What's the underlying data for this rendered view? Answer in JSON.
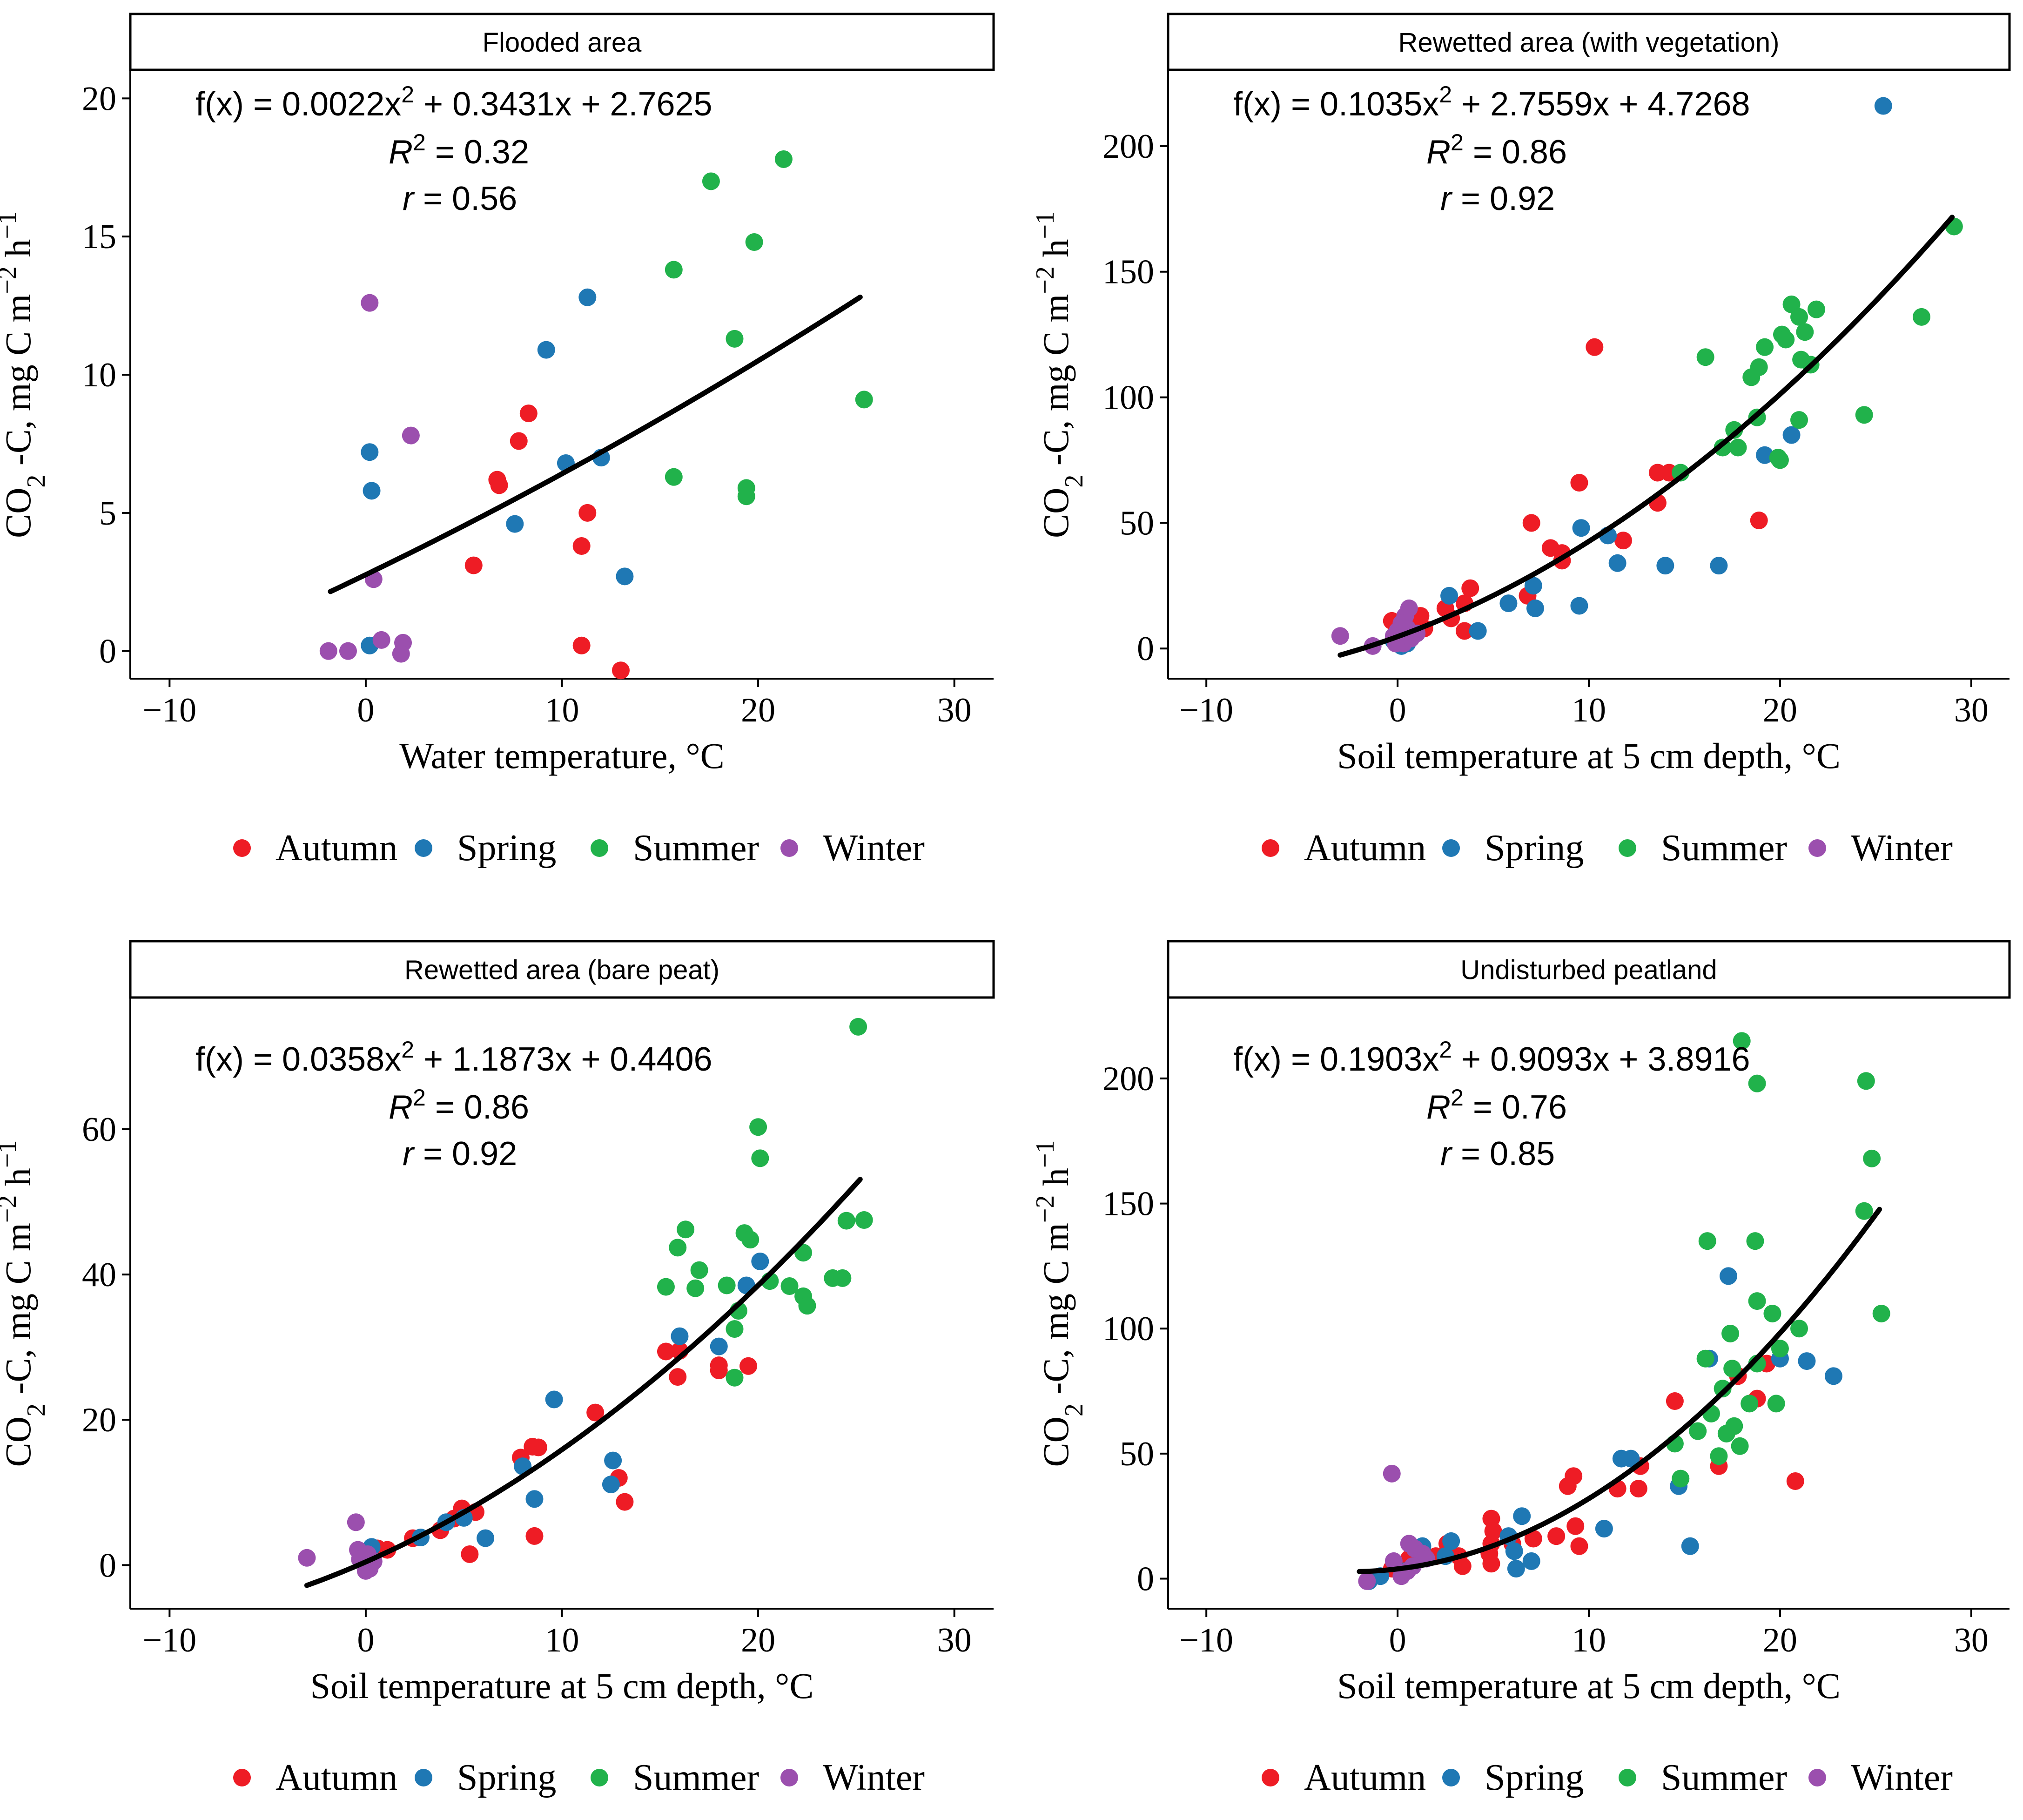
{
  "colors": {
    "Autumn": "#EE1C25",
    "Spring": "#1F78B4",
    "Summer": "#21B24B",
    "Winter": "#9B4FAE"
  },
  "legend": [
    "Autumn",
    "Spring",
    "Summer",
    "Winter"
  ],
  "y_label": {
    "prefix": "CO",
    "sub": "2",
    "mid": " -C, mg C m",
    "sup1": "−2",
    "mid2": " h",
    "sup2": "−1"
  },
  "chart_data": [
    {
      "type": "scatter",
      "title": "Flooded area",
      "xlabel": "Water temperature, °C",
      "xlim": [
        -12,
        32
      ],
      "ylim": [
        -1,
        21
      ],
      "xticks": [
        -10,
        0,
        10,
        20,
        30
      ],
      "yticks": [
        0,
        5,
        10,
        15,
        20
      ],
      "fit": {
        "a": 0.0022,
        "b": 0.3431,
        "c": 2.7625,
        "x_range": [
          -1.8,
          25.2
        ]
      },
      "equation": {
        "f_prefix": "f(x) = 0.0022x",
        "f_exp": "2",
        "f_suffix": " + 0.3431x + 2.7625",
        "r2_label": "R",
        "r2_exp": "2",
        "r2_value": " = 0.32",
        "r_label": "r",
        "r_value": " = 0.56"
      },
      "points": {
        "Autumn": [
          [
            8.3,
            8.6
          ],
          [
            7.8,
            7.6
          ],
          [
            6.7,
            6.2
          ],
          [
            6.8,
            6.0
          ],
          [
            11.3,
            5.0
          ],
          [
            5.5,
            3.1
          ],
          [
            11.0,
            3.8
          ],
          [
            11.0,
            0.2
          ],
          [
            13.0,
            -0.7
          ]
        ],
        "Spring": [
          [
            11.3,
            12.8
          ],
          [
            9.2,
            10.9
          ],
          [
            0.2,
            7.2
          ],
          [
            0.3,
            5.8
          ],
          [
            10.2,
            6.8
          ],
          [
            12.0,
            7.0
          ],
          [
            7.6,
            4.6
          ],
          [
            13.2,
            2.7
          ],
          [
            0.2,
            0.2
          ]
        ],
        "Summer": [
          [
            21.3,
            17.8
          ],
          [
            17.6,
            17.0
          ],
          [
            19.8,
            14.8
          ],
          [
            15.7,
            13.8
          ],
          [
            18.8,
            11.3
          ],
          [
            25.4,
            9.1
          ],
          [
            15.7,
            6.3
          ],
          [
            19.4,
            5.9
          ],
          [
            19.4,
            5.6
          ]
        ],
        "Winter": [
          [
            0.2,
            12.6
          ],
          [
            2.3,
            7.8
          ],
          [
            0.4,
            2.6
          ],
          [
            0.8,
            0.4
          ],
          [
            1.9,
            0.3
          ],
          [
            -0.9,
            0.0
          ],
          [
            -1.9,
            0.0
          ],
          [
            1.8,
            -0.1
          ]
        ]
      }
    },
    {
      "type": "scatter",
      "title": "Rewetted area (with vegetation)",
      "xlabel": "Soil temperature at 5 cm depth, °C",
      "xlim": [
        -12,
        32
      ],
      "ylim": [
        -12,
        230
      ],
      "xticks": [
        -10,
        0,
        10,
        20,
        30
      ],
      "yticks": [
        0,
        50,
        100,
        150,
        200
      ],
      "fit": {
        "a": 0.1035,
        "b": 2.7559,
        "c": 4.7268,
        "x_range": [
          -3,
          29
        ]
      },
      "equation": {
        "f_prefix": "f(x) = 0.1035x",
        "f_exp": "2",
        "f_suffix": " + 2.7559x + 4.7268",
        "r2_label": "R",
        "r2_exp": "2",
        "r2_value": " = 0.86",
        "r_label": "r",
        "r_value": " = 0.92"
      },
      "points": {
        "Autumn": [
          [
            10.3,
            120
          ],
          [
            9.5,
            66
          ],
          [
            13.6,
            70
          ],
          [
            14.2,
            70
          ],
          [
            13.6,
            58
          ],
          [
            7.0,
            50
          ],
          [
            8.0,
            40
          ],
          [
            8.6,
            38
          ],
          [
            8.6,
            35
          ],
          [
            11.8,
            43
          ],
          [
            18.9,
            51
          ],
          [
            3.8,
            24
          ],
          [
            6.8,
            21
          ],
          [
            2.5,
            16
          ],
          [
            3.5,
            18
          ],
          [
            0.7,
            11
          ],
          [
            1.4,
            8
          ],
          [
            -0.3,
            11
          ],
          [
            3.5,
            7
          ],
          [
            1.2,
            13
          ],
          [
            2.8,
            12
          ]
        ],
        "Spring": [
          [
            25.4,
            216
          ],
          [
            20.6,
            85
          ],
          [
            19.2,
            77
          ],
          [
            11.0,
            45
          ],
          [
            9.6,
            48
          ],
          [
            11.5,
            34
          ],
          [
            14.0,
            33
          ],
          [
            16.8,
            33
          ],
          [
            9.5,
            17
          ],
          [
            7.1,
            25
          ],
          [
            5.8,
            18
          ],
          [
            7.2,
            16
          ],
          [
            4.2,
            7
          ],
          [
            2.7,
            21
          ],
          [
            0.8,
            6
          ],
          [
            0.5,
            2
          ],
          [
            -0.2,
            3
          ],
          [
            0.2,
            1
          ]
        ],
        "Summer": [
          [
            29.1,
            168
          ],
          [
            27.4,
            132
          ],
          [
            20.6,
            137
          ],
          [
            21.9,
            135
          ],
          [
            21.0,
            132
          ],
          [
            20.1,
            125
          ],
          [
            20.3,
            123
          ],
          [
            21.3,
            126
          ],
          [
            21.1,
            115
          ],
          [
            21.6,
            113
          ],
          [
            19.2,
            120
          ],
          [
            18.9,
            112
          ],
          [
            18.5,
            108
          ],
          [
            16.1,
            116
          ],
          [
            18.8,
            92
          ],
          [
            24.4,
            93
          ],
          [
            21.0,
            91
          ],
          [
            17.6,
            87
          ],
          [
            17.0,
            80
          ],
          [
            17.8,
            80
          ],
          [
            19.9,
            76
          ],
          [
            20.0,
            75
          ],
          [
            14.8,
            70
          ]
        ],
        "Winter": [
          [
            -3.0,
            5
          ],
          [
            -1.3,
            1
          ],
          [
            0.6,
            16
          ],
          [
            0.4,
            13
          ],
          [
            0.2,
            10
          ],
          [
            0.0,
            7
          ],
          [
            -0.2,
            5
          ],
          [
            0.7,
            4
          ],
          [
            0.3,
            2
          ],
          [
            -0.1,
            2
          ],
          [
            0.5,
            8
          ],
          [
            1.0,
            6
          ]
        ]
      }
    },
    {
      "type": "scatter",
      "title": "Rewetted area (bare peat)",
      "xlabel": "Soil temperature at 5 cm depth, °C",
      "xlim": [
        -12,
        32
      ],
      "ylim": [
        -6,
        78
      ],
      "xticks": [
        -10,
        0,
        10,
        20,
        30
      ],
      "yticks": [
        0,
        20,
        40,
        60
      ],
      "fit": {
        "a": 0.0358,
        "b": 1.1873,
        "c": 0.4406,
        "x_range": [
          -3,
          25.2
        ]
      },
      "equation": {
        "f_prefix": "f(x) = 0.0358x",
        "f_exp": "2",
        "f_suffix": " + 1.1873x + 0.4406",
        "r2_label": "R",
        "r2_exp": "2",
        "r2_value": " = 0.86",
        "r_label": "r",
        "r_value": " = 0.92"
      },
      "points": {
        "Autumn": [
          [
            11.7,
            21
          ],
          [
            8.5,
            16.3
          ],
          [
            8.8,
            16.2
          ],
          [
            7.9,
            14.8
          ],
          [
            12.9,
            12
          ],
          [
            13.2,
            8.7
          ],
          [
            15.3,
            29.4
          ],
          [
            16.0,
            29.5
          ],
          [
            18.0,
            27.5
          ],
          [
            19.5,
            27.4
          ],
          [
            18.0,
            26.8
          ],
          [
            15.9,
            25.9
          ],
          [
            5.6,
            7.3
          ],
          [
            4.9,
            7.8
          ],
          [
            4.5,
            6.4
          ],
          [
            3.8,
            4.8
          ],
          [
            2.4,
            3.7
          ],
          [
            1.1,
            2.1
          ],
          [
            8.6,
            4.0
          ],
          [
            5.3,
            1.5
          ],
          [
            0.6,
            2.3
          ]
        ],
        "Spring": [
          [
            20.1,
            41.8
          ],
          [
            19.4,
            38.5
          ],
          [
            18.0,
            30.1
          ],
          [
            16.0,
            31.5
          ],
          [
            9.6,
            22.8
          ],
          [
            12.6,
            14.4
          ],
          [
            12.5,
            11.1
          ],
          [
            8.6,
            9.1
          ],
          [
            8.0,
            13.6
          ],
          [
            6.1,
            3.7
          ],
          [
            5.0,
            6.5
          ],
          [
            4.1,
            5.9
          ],
          [
            2.8,
            3.8
          ],
          [
            0.3,
            2.5
          ],
          [
            0.1,
            1.0
          ]
        ],
        "Summer": [
          [
            25.1,
            74.1
          ],
          [
            20.0,
            60.3
          ],
          [
            20.1,
            56
          ],
          [
            16.3,
            46.2
          ],
          [
            15.9,
            43.7
          ],
          [
            19.3,
            45.7
          ],
          [
            19.6,
            44.8
          ],
          [
            24.5,
            47.4
          ],
          [
            25.4,
            47.5
          ],
          [
            22.3,
            43
          ],
          [
            17.0,
            40.6
          ],
          [
            15.3,
            38.3
          ],
          [
            16.8,
            38.1
          ],
          [
            18.4,
            38.5
          ],
          [
            21.6,
            38.4
          ],
          [
            20.6,
            39.1
          ],
          [
            23.8,
            39.5
          ],
          [
            24.3,
            39.5
          ],
          [
            22.3,
            37
          ],
          [
            22.5,
            35.7
          ],
          [
            18.8,
            32.5
          ],
          [
            18.8,
            25.8
          ],
          [
            19.0,
            35
          ]
        ],
        "Winter": [
          [
            -3.0,
            1.0
          ],
          [
            -0.5,
            5.9
          ],
          [
            -0.4,
            2.1
          ],
          [
            0.0,
            0.0
          ],
          [
            0.2,
            -0.5
          ],
          [
            -0.3,
            0.8
          ],
          [
            0.1,
            1.5
          ],
          [
            0.0,
            -0.8
          ],
          [
            0.4,
            0.5
          ]
        ]
      }
    },
    {
      "type": "scatter",
      "title": "Undisturbed peatland",
      "xlabel": "Soil temperature at 5 cm depth, °C",
      "xlim": [
        -12,
        32
      ],
      "ylim": [
        -12,
        232
      ],
      "xticks": [
        -10,
        0,
        10,
        20,
        30
      ],
      "yticks": [
        0,
        50,
        100,
        150,
        200
      ],
      "fit": {
        "a": 0.1903,
        "b": 0.9093,
        "c": 3.8916,
        "x_range": [
          -2,
          25.2
        ]
      },
      "equation": {
        "f_prefix": "f(x) = 0.1903x",
        "f_exp": "2",
        "f_suffix": " + 0.9093x + 3.8916",
        "r2_label": "R",
        "r2_exp": "2",
        "r2_value": " = 0.76",
        "r_label": "r",
        "r_value": " = 0.85"
      },
      "points": {
        "Autumn": [
          [
            19.3,
            86
          ],
          [
            18.8,
            72
          ],
          [
            14.5,
            71
          ],
          [
            17.8,
            81
          ],
          [
            16.8,
            45
          ],
          [
            20.8,
            39
          ],
          [
            9.2,
            41
          ],
          [
            8.9,
            37
          ],
          [
            11.5,
            36
          ],
          [
            12.7,
            45
          ],
          [
            12.6,
            36
          ],
          [
            9.3,
            21
          ],
          [
            9.5,
            13
          ],
          [
            8.3,
            17
          ],
          [
            7.1,
            16
          ],
          [
            6.0,
            14
          ],
          [
            4.9,
            24
          ],
          [
            5.0,
            19
          ],
          [
            4.9,
            14
          ],
          [
            4.8,
            10
          ],
          [
            4.9,
            6
          ],
          [
            3.4,
            5
          ],
          [
            3.2,
            9
          ],
          [
            2.0,
            9
          ],
          [
            2.6,
            14
          ],
          [
            1.3,
            11
          ],
          [
            0.6,
            8
          ],
          [
            -0.3,
            4
          ]
        ],
        "Spring": [
          [
            17.3,
            121
          ],
          [
            16.3,
            88
          ],
          [
            21.4,
            87
          ],
          [
            22.8,
            81
          ],
          [
            20.0,
            88
          ],
          [
            11.7,
            48
          ],
          [
            12.2,
            48
          ],
          [
            14.7,
            37
          ],
          [
            15.3,
            13
          ],
          [
            10.8,
            20
          ],
          [
            6.5,
            25
          ],
          [
            5.8,
            17
          ],
          [
            6.1,
            11
          ],
          [
            7.0,
            7
          ],
          [
            6.2,
            4
          ],
          [
            2.8,
            15
          ],
          [
            2.5,
            9
          ],
          [
            1.3,
            13
          ],
          [
            0.4,
            3
          ],
          [
            -0.9,
            1
          ],
          [
            -1.5,
            -1
          ]
        ],
        "Summer": [
          [
            18.0,
            215
          ],
          [
            18.8,
            198
          ],
          [
            24.5,
            199
          ],
          [
            24.8,
            168
          ],
          [
            24.4,
            147
          ],
          [
            16.2,
            135
          ],
          [
            18.7,
            135
          ],
          [
            18.8,
            111
          ],
          [
            19.6,
            106
          ],
          [
            25.3,
            106
          ],
          [
            21.0,
            100
          ],
          [
            17.4,
            98
          ],
          [
            20.0,
            92
          ],
          [
            16.1,
            88
          ],
          [
            17.5,
            84
          ],
          [
            18.8,
            86
          ],
          [
            17.0,
            76
          ],
          [
            18.4,
            70
          ],
          [
            19.8,
            70
          ],
          [
            16.4,
            66
          ],
          [
            17.6,
            61
          ],
          [
            17.2,
            58
          ],
          [
            16.8,
            49
          ],
          [
            15.7,
            59
          ],
          [
            14.5,
            54
          ],
          [
            14.8,
            40
          ],
          [
            17.9,
            53
          ]
        ],
        "Winter": [
          [
            -0.3,
            42
          ],
          [
            0.6,
            14
          ],
          [
            0.9,
            12
          ],
          [
            1.3,
            10
          ],
          [
            1.5,
            8
          ],
          [
            -0.2,
            7
          ],
          [
            0.8,
            5
          ],
          [
            -1.6,
            -1
          ],
          [
            0.2,
            1
          ],
          [
            0.5,
            3
          ]
        ]
      }
    }
  ]
}
